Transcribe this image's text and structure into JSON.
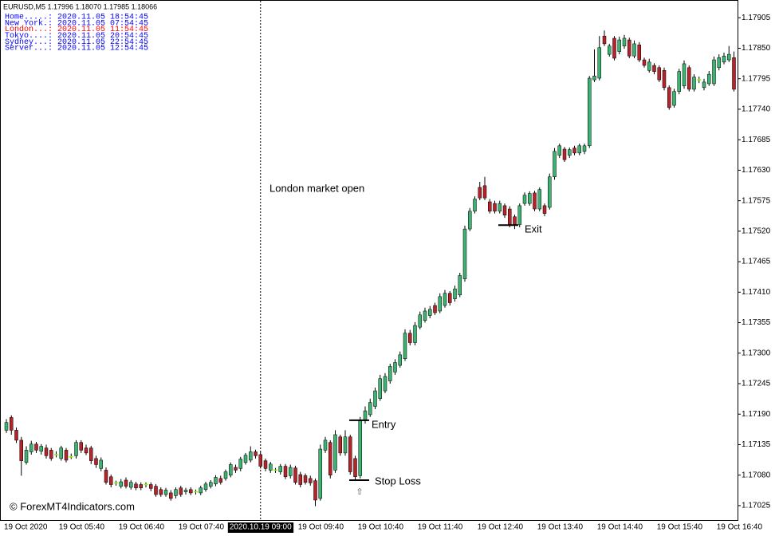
{
  "chart_data": {
    "type": "candlestick",
    "info_line": "EURUSD,M5  1.17996 1.18070 1.17985 1.18066",
    "clocks": [
      {
        "text": "Home.....: 2020.11.05 18:54:45",
        "color": "#0000ff"
      },
      {
        "text": "New York.: 2020.11.05 07:54:45",
        "color": "#0000ff"
      },
      {
        "text": "London...: 2020.11.05 11:54:45",
        "color": "#ff0000"
      },
      {
        "text": "Tokyo....: 2020.11.05 20:54:45",
        "color": "#0000ff"
      },
      {
        "text": "Sydney...: 2020.11.05 22:54:45",
        "color": "#0000ff"
      },
      {
        "text": "Server...: 2020.11.05 12:54:45",
        "color": "#0000ff"
      }
    ],
    "watermark": "© ForexMT4Indicators.com",
    "up_color": "#3cb371",
    "down_color": "#b5242a",
    "doji_color": "#7cfc00",
    "vline_at": "2020.10.19 09:00",
    "annotations": [
      {
        "text": "London market open"
      },
      {
        "text": "Entry",
        "value": 1.17179
      },
      {
        "text": "Stop Loss",
        "value": 1.17071
      },
      {
        "text": "Exit",
        "value": 1.17531
      }
    ],
    "ylim": [
      1.16999,
      1.17937
    ],
    "yticks": [
      1.17905,
      {
        "value": 1.1785,
        "label": "1.17850"
      },
      1.17795,
      {
        "value": 1.1774,
        "label": "1.17740"
      },
      1.17685,
      {
        "value": 1.1763,
        "label": "1.17630"
      },
      1.17575,
      {
        "value": 1.1752,
        "label": "1.17520"
      },
      1.17465,
      {
        "value": 1.1741,
        "label": "1.17410"
      },
      1.17355,
      {
        "value": 1.173,
        "label": "1.17300"
      },
      1.17245,
      {
        "value": 1.1719,
        "label": "1.17190"
      },
      1.17135,
      {
        "value": 1.1708,
        "label": "1.17080"
      },
      1.17025
    ],
    "categories": [
      "19 Oct 2020",
      null,
      null,
      null,
      null,
      null,
      null,
      null,
      null,
      null,
      null,
      "19 Oct 05:40",
      null,
      null,
      null,
      null,
      null,
      null,
      null,
      null,
      null,
      null,
      null,
      "19 Oct 06:40",
      null,
      null,
      null,
      null,
      null,
      null,
      null,
      null,
      null,
      null,
      null,
      "19 Oct 07:40",
      null,
      null,
      null,
      null,
      null,
      null,
      null,
      null,
      null,
      null,
      null,
      null,
      null,
      null,
      null,
      "2020.10.19 09:00",
      null,
      null,
      null,
      null,
      null,
      null,
      null,
      "19 Oct 09:40",
      null,
      null,
      null,
      null,
      null,
      null,
      null,
      null,
      null,
      null,
      null,
      "19 Oct 10:40",
      null,
      null,
      null,
      null,
      null,
      null,
      null,
      null,
      null,
      null,
      null,
      "19 Oct 11:40",
      null,
      null,
      null,
      null,
      null,
      null,
      null,
      null,
      null,
      null,
      null,
      "19 Oct 12:40",
      null,
      null,
      null,
      null,
      null,
      null,
      null,
      null,
      null,
      null,
      null,
      "19 Oct 13:40",
      null,
      null,
      null,
      null,
      null,
      null,
      null,
      null,
      null,
      null,
      null,
      "19 Oct 14:40",
      null,
      null,
      null,
      null,
      null,
      null,
      null,
      null,
      null,
      null,
      null,
      "19 Oct 15:40",
      null,
      null,
      null,
      null,
      null,
      null,
      null,
      null,
      null,
      null,
      null,
      "19 Oct 16:40",
      null,
      null,
      null
    ],
    "open": [
      1.17161,
      1.17184,
      1.17161,
      1.17143,
      1.17103,
      1.17122,
      1.17136,
      1.17123,
      1.17129,
      1.17125,
      1.17117,
      1.1711,
      1.17125,
      1.17113,
      1.17115,
      1.17139,
      1.17129,
      1.17129,
      1.1711,
      1.17092,
      1.17089,
      1.17077,
      1.17066,
      1.1706,
      1.17071,
      1.17058,
      1.17064,
      1.17063,
      1.17063,
      1.17063,
      1.1706,
      1.17054,
      1.17045,
      1.17048,
      1.17043,
      1.17057,
      1.1705,
      1.17054,
      1.1705,
      1.17048,
      1.17054,
      1.1706,
      1.17064,
      1.17074,
      1.17074,
      1.1708,
      1.17094,
      1.17092,
      1.17103,
      1.17107,
      1.17122,
      1.17117,
      1.17106,
      1.17089,
      1.17089,
      1.17086,
      1.17096,
      1.17079,
      1.17093,
      1.17081,
      1.17079,
      1.17074,
      1.1707,
      1.17038,
      1.17125,
      1.17139,
      1.17089,
      1.17149,
      1.1712,
      1.17149,
      1.1711,
      1.17079,
      1.17178,
      1.17189,
      1.17204,
      1.17218,
      1.17232,
      1.1725,
      1.17266,
      1.17278,
      1.1729,
      1.17336,
      1.17319,
      1.17347,
      1.17359,
      1.17368,
      1.17386,
      1.17376,
      1.17386,
      1.17408,
      1.17398,
      1.17405,
      1.17434,
      1.17524,
      1.17556,
      1.17599,
      1.17602,
      1.17573,
      1.1757,
      1.17556,
      1.17566,
      1.1756,
      1.17546,
      1.17532,
      1.1757,
      1.1757,
      1.17589,
      1.1756,
      1.17566,
      1.17563,
      1.17618,
      1.17657,
      1.17668,
      1.17657,
      1.1767,
      1.17661,
      1.17664,
      1.17674,
      1.17793,
      1.17796,
      1.17872,
      1.17839,
      1.17868,
      1.17844,
      1.17854,
      1.17865,
      1.17836,
      1.17856,
      1.17829,
      1.1781,
      1.17819,
      1.17815,
      1.1781,
      1.17779,
      1.17747,
      1.17772,
      1.17782,
      1.17815,
      1.17776,
      1.17793,
      1.17779,
      1.17786,
      1.17786,
      1.17815,
      1.17825,
      1.17829,
      1.17833
    ],
    "high": [
      1.17181,
      1.17188,
      1.17166,
      1.17149,
      1.17132,
      1.17142,
      1.1714,
      1.17136,
      1.17135,
      1.17129,
      1.17123,
      1.17133,
      1.17129,
      1.17119,
      1.17143,
      1.17143,
      1.17135,
      1.17133,
      1.17115,
      1.17112,
      1.17094,
      1.17081,
      1.1707,
      1.17073,
      1.17076,
      1.17071,
      1.17068,
      1.17067,
      1.17067,
      1.17067,
      1.17064,
      1.17058,
      1.17057,
      1.17053,
      1.17058,
      1.17061,
      1.17057,
      1.17058,
      1.17054,
      1.17061,
      1.17068,
      1.17071,
      1.1708,
      1.17079,
      1.1709,
      1.17103,
      1.17099,
      1.17113,
      1.1712,
      1.17132,
      1.17126,
      1.17122,
      1.1711,
      1.17104,
      1.17093,
      1.171,
      1.171,
      1.17099,
      1.17097,
      1.17086,
      1.17083,
      1.17079,
      1.17074,
      1.17135,
      1.17149,
      1.17143,
      1.17161,
      1.17153,
      1.17161,
      1.17153,
      1.17115,
      1.17185,
      1.17204,
      1.17218,
      1.17238,
      1.17261,
      1.17264,
      1.17281,
      1.17289,
      1.17303,
      1.17343,
      1.17342,
      1.17356,
      1.17375,
      1.17382,
      1.17385,
      1.17391,
      1.17408,
      1.17414,
      1.17412,
      1.17422,
      1.17445,
      1.1753,
      1.17562,
      1.17583,
      1.17609,
      1.17618,
      1.17578,
      1.17575,
      1.17575,
      1.1757,
      1.17565,
      1.1755,
      1.1757,
      1.1759,
      1.17592,
      1.17593,
      1.17599,
      1.1757,
      1.17624,
      1.1767,
      1.17678,
      1.17672,
      1.17671,
      1.17674,
      1.17678,
      1.17678,
      1.178,
      1.17848,
      1.17872,
      1.17882,
      1.17858,
      1.17872,
      1.17871,
      1.17874,
      1.17869,
      1.17864,
      1.17861,
      1.17833,
      1.17831,
      1.17823,
      1.17819,
      1.17815,
      1.17783,
      1.17777,
      1.17813,
      1.17828,
      1.17819,
      1.17803,
      1.17799,
      1.17795,
      1.17809,
      1.17835,
      1.17839,
      1.17842,
      1.17854,
      1.17844
    ],
    "low": [
      1.17156,
      1.17153,
      1.17138,
      1.17079,
      1.17099,
      1.17117,
      1.1712,
      1.17117,
      1.1711,
      1.17106,
      1.17112,
      1.17106,
      1.17103,
      1.17109,
      1.1711,
      1.1712,
      1.17116,
      1.171,
      1.17093,
      1.17087,
      1.17063,
      1.17058,
      1.17061,
      1.17056,
      1.17056,
      1.17054,
      1.17053,
      1.17053,
      1.17058,
      1.17051,
      1.17041,
      1.17041,
      1.17041,
      1.17034,
      1.17038,
      1.17041,
      1.17045,
      1.17044,
      1.17045,
      1.17044,
      1.1705,
      1.17056,
      1.1706,
      1.17063,
      1.1707,
      1.17076,
      1.17084,
      1.17087,
      1.17099,
      1.17103,
      1.1711,
      1.17092,
      1.17087,
      1.17084,
      1.17084,
      1.17081,
      1.17073,
      1.17074,
      1.17063,
      1.17058,
      1.17063,
      1.17061,
      1.17024,
      1.17034,
      1.1712,
      1.17074,
      1.17084,
      1.17115,
      1.17115,
      1.17081,
      1.17071,
      1.17074,
      1.17173,
      1.17185,
      1.17199,
      1.17214,
      1.17228,
      1.17245,
      1.17261,
      1.17274,
      1.17286,
      1.17314,
      1.17314,
      1.17343,
      1.17355,
      1.17363,
      1.17369,
      1.17372,
      1.17382,
      1.17386,
      1.17393,
      1.17401,
      1.17429,
      1.1752,
      1.17552,
      1.17576,
      1.17576,
      1.17552,
      1.17552,
      1.17552,
      1.17544,
      1.17527,
      1.17524,
      1.17527,
      1.17566,
      1.17566,
      1.17556,
      1.17556,
      1.17547,
      1.17559,
      1.17613,
      1.17652,
      1.17645,
      1.17652,
      1.17657,
      1.17657,
      1.17659,
      1.1767,
      1.17789,
      1.17792,
      1.17854,
      1.17835,
      1.17828,
      1.17839,
      1.17849,
      1.17832,
      1.17832,
      1.17825,
      1.17815,
      1.17806,
      1.17803,
      1.17789,
      1.17774,
      1.17739,
      1.17743,
      1.17767,
      1.17777,
      1.17772,
      1.17772,
      1.17787,
      1.17774,
      1.17782,
      1.17782,
      1.1781,
      1.17821,
      1.17825,
      1.17772
    ],
    "close": [
      1.17175,
      1.17161,
      1.17143,
      1.17106,
      1.17125,
      1.17136,
      1.17125,
      1.17132,
      1.17115,
      1.1711,
      1.17117,
      1.17129,
      1.17107,
      1.17113,
      1.17139,
      1.17125,
      1.1712,
      1.17106,
      1.17099,
      1.17107,
      1.17067,
      1.17063,
      1.17066,
      1.17068,
      1.1706,
      1.17067,
      1.17057,
      1.17057,
      1.17063,
      1.17056,
      1.17045,
      1.17045,
      1.17053,
      1.17038,
      1.17054,
      1.17045,
      1.17053,
      1.17048,
      1.1705,
      1.17057,
      1.17064,
      1.17067,
      1.17076,
      1.17067,
      1.17086,
      1.17099,
      1.17089,
      1.17109,
      1.17116,
      1.17122,
      1.17115,
      1.17096,
      1.17092,
      1.171,
      1.17089,
      1.17096,
      1.17077,
      1.17094,
      1.17067,
      1.17063,
      1.17067,
      1.17066,
      1.17035,
      1.17127,
      1.17143,
      1.1708,
      1.17153,
      1.1712,
      1.17149,
      1.17086,
      1.17077,
      1.17178,
      1.17196,
      1.17211,
      1.17232,
      1.17254,
      1.17258,
      1.17276,
      1.17283,
      1.17297,
      1.17336,
      1.17319,
      1.1735,
      1.17369,
      1.17376,
      1.17379,
      1.17373,
      1.17402,
      1.17408,
      1.17391,
      1.17416,
      1.1744,
      1.17524,
      1.17556,
      1.17578,
      1.1758,
      1.1758,
      1.17556,
      1.17556,
      1.1757,
      1.17549,
      1.17532,
      1.17532,
      1.17566,
      1.17585,
      1.17588,
      1.1756,
      1.17595,
      1.17552,
      1.17618,
      1.17664,
      1.17674,
      1.17649,
      1.17667,
      1.17661,
      1.17674,
      1.17674,
      1.17796,
      1.178,
      1.17851,
      1.17858,
      1.17854,
      1.17832,
      1.17865,
      1.17868,
      1.17836,
      1.17858,
      1.17829,
      1.17819,
      1.17825,
      1.17808,
      1.17793,
      1.17779,
      1.17743,
      1.17772,
      1.17808,
      1.17822,
      1.17776,
      1.17798,
      1.17793,
      1.17789,
      1.17803,
      1.17829,
      1.17833,
      1.17836,
      1.17839,
      1.17776
    ]
  }
}
